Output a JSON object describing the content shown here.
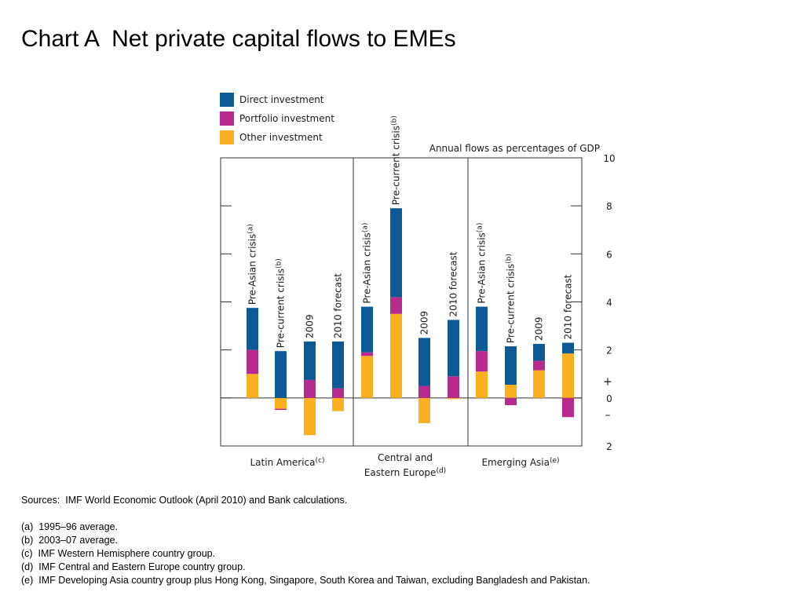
{
  "title": "Chart A  Net private capital flows to EMEs",
  "chart_data": {
    "type": "bar",
    "stacked": true,
    "units_label": "Annual flows as percentages of GDP",
    "ylim": [
      -2,
      10
    ],
    "y_ticks": [
      {
        "value": 10,
        "label": "10"
      },
      {
        "value": 8,
        "label": "8"
      },
      {
        "value": 6,
        "label": "6"
      },
      {
        "value": 4,
        "label": "4"
      },
      {
        "value": 2,
        "label": "2"
      },
      {
        "value": 0,
        "label": "0"
      },
      {
        "value": -2,
        "label": "2"
      }
    ],
    "sign_labels": {
      "plus": "+",
      "minus": "–"
    },
    "grid": false,
    "legend_position": "top-left",
    "series": [
      {
        "name": "Direct investment",
        "color": "#0b5a96"
      },
      {
        "name": "Portfolio investment",
        "color": "#b72a8e"
      },
      {
        "name": "Other investment",
        "color": "#fbb021"
      }
    ],
    "groups": [
      {
        "name": "Latin America",
        "superscript": "(c)",
        "categories": [
          {
            "label": "Pre-Asian crisis",
            "superscript": "(a)",
            "other": 1.0,
            "portfolio": 1.0,
            "direct": 1.75
          },
          {
            "label": "Pre-current crisis",
            "superscript": "(b)",
            "other": -0.45,
            "portfolio": -0.05,
            "direct": 1.95
          },
          {
            "label": "2009",
            "superscript": "",
            "other": -1.55,
            "portfolio": 0.75,
            "direct": 1.6
          },
          {
            "label": "2010 forecast",
            "superscript": "",
            "other": -0.55,
            "portfolio": 0.4,
            "direct": 1.95
          }
        ]
      },
      {
        "name": "Central and Eastern Europe",
        "superscript": "(d)",
        "categories": [
          {
            "label": "Pre-Asian crisis",
            "superscript": "(a)",
            "other": 1.75,
            "portfolio": 0.15,
            "direct": 1.9
          },
          {
            "label": "Pre-current crisis",
            "superscript": "(b)",
            "other": 3.5,
            "portfolio": 0.7,
            "direct": 3.7
          },
          {
            "label": "2009",
            "superscript": "",
            "other": -1.05,
            "portfolio": 0.5,
            "direct": 2.0
          },
          {
            "label": "2010 forecast",
            "superscript": "",
            "other": -0.05,
            "portfolio": 0.9,
            "direct": 2.35
          }
        ]
      },
      {
        "name": "Emerging Asia",
        "superscript": "(e)",
        "categories": [
          {
            "label": "Pre-Asian crisis",
            "superscript": "(a)",
            "other": 1.1,
            "portfolio": 0.85,
            "direct": 1.85
          },
          {
            "label": "Pre-current crisis",
            "superscript": "(b)",
            "other": 0.55,
            "portfolio": -0.3,
            "direct": 1.6
          },
          {
            "label": "2009",
            "superscript": "",
            "other": 1.15,
            "portfolio": 0.4,
            "direct": 0.7
          },
          {
            "label": "2010 forecast",
            "superscript": "",
            "other": 1.85,
            "portfolio": -0.8,
            "direct": 0.45
          }
        ]
      }
    ]
  },
  "footnotes": {
    "sources": "Sources:  IMF World Economic Outlook (April 2010) and Bank calculations.",
    "notes": [
      "(a)  1995–96 average.",
      "(b)  2003–07 average.",
      "(c)  IMF Western Hemisphere country group.",
      "(d)  IMF Central and Eastern Europe country group.",
      "(e)  IMF Developing Asia country group plus Hong Kong, Singapore, South Korea and Taiwan, excluding Bangladesh and Pakistan."
    ]
  }
}
